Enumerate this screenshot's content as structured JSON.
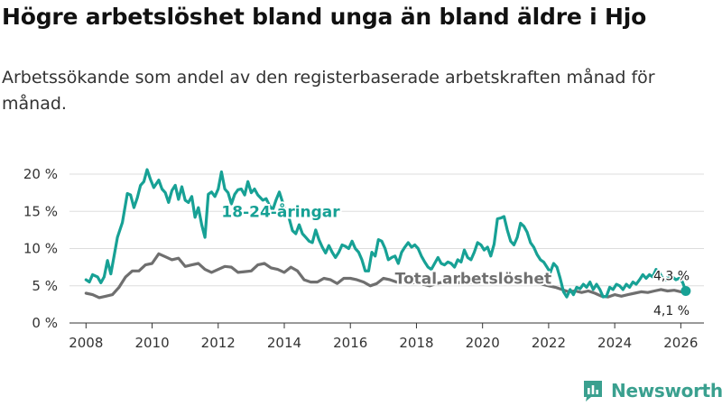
{
  "title": "Högre arbetslöshet bland unga än bland äldre i Hjo",
  "subtitle": "Arbetssökande som andel av den registerbaserade arbetskraften månad för månad.",
  "brand": {
    "name": "Newsworthy",
    "color": "#3aa08f",
    "logo_icon": "bar-chart-icon"
  },
  "chart_data": {
    "type": "line",
    "xlim": [
      2007.5,
      2026.7
    ],
    "ylim": [
      0,
      20
    ],
    "x_ticks": [
      {
        "value": 2008,
        "label": "2008"
      },
      {
        "value": 2010,
        "label": "2010"
      },
      {
        "value": 2012,
        "label": "2012"
      },
      {
        "value": 2014,
        "label": "2014"
      },
      {
        "value": 2016,
        "label": "2016"
      },
      {
        "value": 2018,
        "label": "2018"
      },
      {
        "value": 2020,
        "label": "2020"
      },
      {
        "value": 2022,
        "label": "2022"
      },
      {
        "value": 2024,
        "label": "2024"
      },
      {
        "value": 2026,
        "label": "2026"
      }
    ],
    "y_ticks": [
      {
        "value": 0,
        "label": "0 %"
      },
      {
        "value": 5,
        "label": "5 %"
      },
      {
        "value": 10,
        "label": "10 %"
      },
      {
        "value": 15,
        "label": "15 %"
      },
      {
        "value": 20,
        "label": "20 %"
      }
    ],
    "series": [
      {
        "name": "18-24-åringar",
        "color": "#17a195",
        "label_at": {
          "x": 2012.1,
          "y": 15.0
        },
        "end_label": "4,3 %",
        "points": [
          [
            2008.0,
            5.8
          ],
          [
            2008.1,
            5.5
          ],
          [
            2008.2,
            6.5
          ],
          [
            2008.35,
            6.2
          ],
          [
            2008.45,
            5.4
          ],
          [
            2008.55,
            6.2
          ],
          [
            2008.65,
            8.4
          ],
          [
            2008.75,
            6.6
          ],
          [
            2008.85,
            9.0
          ],
          [
            2008.95,
            11.5
          ],
          [
            2009.1,
            13.5
          ],
          [
            2009.25,
            17.4
          ],
          [
            2009.35,
            17.2
          ],
          [
            2009.45,
            15.5
          ],
          [
            2009.55,
            16.8
          ],
          [
            2009.65,
            18.5
          ],
          [
            2009.75,
            19.0
          ],
          [
            2009.85,
            20.6
          ],
          [
            2009.95,
            19.3
          ],
          [
            2010.05,
            18.2
          ],
          [
            2010.2,
            19.2
          ],
          [
            2010.3,
            18.0
          ],
          [
            2010.4,
            17.5
          ],
          [
            2010.5,
            16.2
          ],
          [
            2010.6,
            17.8
          ],
          [
            2010.7,
            18.5
          ],
          [
            2010.8,
            16.6
          ],
          [
            2010.9,
            18.3
          ],
          [
            2011.0,
            16.5
          ],
          [
            2011.1,
            16.2
          ],
          [
            2011.2,
            17.0
          ],
          [
            2011.3,
            14.2
          ],
          [
            2011.4,
            15.5
          ],
          [
            2011.5,
            13.2
          ],
          [
            2011.6,
            11.5
          ],
          [
            2011.7,
            17.3
          ],
          [
            2011.8,
            17.6
          ],
          [
            2011.9,
            17.0
          ],
          [
            2012.0,
            18.0
          ],
          [
            2012.1,
            20.3
          ],
          [
            2012.2,
            18.0
          ],
          [
            2012.3,
            17.5
          ],
          [
            2012.4,
            16.0
          ],
          [
            2012.5,
            17.3
          ],
          [
            2012.6,
            17.9
          ],
          [
            2012.7,
            18.0
          ],
          [
            2012.8,
            17.2
          ],
          [
            2012.9,
            19.0
          ],
          [
            2013.0,
            17.5
          ],
          [
            2013.1,
            18.0
          ],
          [
            2013.2,
            17.2
          ],
          [
            2013.35,
            16.5
          ],
          [
            2013.45,
            16.7
          ],
          [
            2013.55,
            15.8
          ],
          [
            2013.65,
            15.2
          ],
          [
            2013.75,
            16.5
          ],
          [
            2013.85,
            17.6
          ],
          [
            2013.95,
            16.2
          ],
          [
            2014.05,
            15.0
          ],
          [
            2014.15,
            14.0
          ],
          [
            2014.25,
            12.4
          ],
          [
            2014.35,
            12.0
          ],
          [
            2014.45,
            13.2
          ],
          [
            2014.55,
            12.0
          ],
          [
            2014.65,
            11.5
          ],
          [
            2014.75,
            11.0
          ],
          [
            2014.85,
            10.8
          ],
          [
            2014.95,
            12.5
          ],
          [
            2015.05,
            11.2
          ],
          [
            2015.15,
            10.2
          ],
          [
            2015.25,
            9.4
          ],
          [
            2015.35,
            10.4
          ],
          [
            2015.45,
            9.5
          ],
          [
            2015.55,
            8.8
          ],
          [
            2015.65,
            9.5
          ],
          [
            2015.75,
            10.5
          ],
          [
            2015.85,
            10.3
          ],
          [
            2015.95,
            10.0
          ],
          [
            2016.05,
            11.0
          ],
          [
            2016.15,
            10.0
          ],
          [
            2016.25,
            9.5
          ],
          [
            2016.35,
            8.5
          ],
          [
            2016.45,
            7.0
          ],
          [
            2016.55,
            7.0
          ],
          [
            2016.65,
            9.5
          ],
          [
            2016.75,
            9.0
          ],
          [
            2016.85,
            11.2
          ],
          [
            2016.95,
            11.0
          ],
          [
            2017.05,
            10.0
          ],
          [
            2017.15,
            8.5
          ],
          [
            2017.25,
            8.8
          ],
          [
            2017.35,
            9.0
          ],
          [
            2017.45,
            8.0
          ],
          [
            2017.55,
            9.5
          ],
          [
            2017.65,
            10.2
          ],
          [
            2017.75,
            10.8
          ],
          [
            2017.85,
            10.2
          ],
          [
            2017.95,
            10.5
          ],
          [
            2018.05,
            10.0
          ],
          [
            2018.15,
            9.0
          ],
          [
            2018.25,
            8.2
          ],
          [
            2018.35,
            7.5
          ],
          [
            2018.45,
            7.2
          ],
          [
            2018.55,
            8.0
          ],
          [
            2018.65,
            8.8
          ],
          [
            2018.75,
            8.0
          ],
          [
            2018.85,
            7.8
          ],
          [
            2018.95,
            8.2
          ],
          [
            2019.05,
            8.0
          ],
          [
            2019.15,
            7.5
          ],
          [
            2019.25,
            8.5
          ],
          [
            2019.35,
            8.2
          ],
          [
            2019.45,
            9.8
          ],
          [
            2019.55,
            8.8
          ],
          [
            2019.65,
            8.5
          ],
          [
            2019.75,
            9.5
          ],
          [
            2019.85,
            10.8
          ],
          [
            2019.95,
            10.5
          ],
          [
            2020.05,
            9.8
          ],
          [
            2020.15,
            10.2
          ],
          [
            2020.25,
            9.0
          ],
          [
            2020.35,
            10.6
          ],
          [
            2020.45,
            14.0
          ],
          [
            2020.55,
            14.1
          ],
          [
            2020.65,
            14.3
          ],
          [
            2020.75,
            12.5
          ],
          [
            2020.85,
            11.0
          ],
          [
            2020.95,
            10.5
          ],
          [
            2021.05,
            11.5
          ],
          [
            2021.15,
            13.4
          ],
          [
            2021.25,
            13.0
          ],
          [
            2021.35,
            12.2
          ],
          [
            2021.45,
            10.8
          ],
          [
            2021.55,
            10.2
          ],
          [
            2021.65,
            9.2
          ],
          [
            2021.75,
            8.5
          ],
          [
            2021.85,
            8.2
          ],
          [
            2021.95,
            7.5
          ],
          [
            2022.05,
            6.8
          ],
          [
            2022.15,
            8.0
          ],
          [
            2022.25,
            7.5
          ],
          [
            2022.35,
            6.0
          ],
          [
            2022.45,
            4.2
          ],
          [
            2022.55,
            3.5
          ],
          [
            2022.65,
            4.5
          ],
          [
            2022.75,
            3.8
          ],
          [
            2022.85,
            4.8
          ],
          [
            2022.95,
            4.6
          ],
          [
            2023.05,
            5.2
          ],
          [
            2023.15,
            4.8
          ],
          [
            2023.25,
            5.5
          ],
          [
            2023.35,
            4.5
          ],
          [
            2023.45,
            5.2
          ],
          [
            2023.55,
            4.5
          ],
          [
            2023.65,
            3.5
          ],
          [
            2023.75,
            3.6
          ],
          [
            2023.85,
            4.8
          ],
          [
            2023.95,
            4.5
          ],
          [
            2024.05,
            5.2
          ],
          [
            2024.15,
            5.0
          ],
          [
            2024.25,
            4.5
          ],
          [
            2024.35,
            5.2
          ],
          [
            2024.45,
            4.8
          ],
          [
            2024.55,
            5.5
          ],
          [
            2024.65,
            5.2
          ],
          [
            2024.75,
            5.8
          ],
          [
            2024.85,
            6.5
          ],
          [
            2024.95,
            6.0
          ],
          [
            2025.05,
            6.5
          ],
          [
            2025.15,
            6.2
          ],
          [
            2025.25,
            7.2
          ],
          [
            2025.35,
            6.8
          ],
          [
            2025.45,
            6.0
          ],
          [
            2025.55,
            5.8
          ],
          [
            2025.65,
            6.5
          ],
          [
            2025.75,
            6.2
          ],
          [
            2025.85,
            5.8
          ],
          [
            2025.95,
            6.0
          ],
          [
            2026.05,
            5.5
          ],
          [
            2026.15,
            4.3
          ]
        ]
      },
      {
        "name": "Total arbetslöshet",
        "color": "#6f6f6f",
        "label_at": {
          "x": 2017.35,
          "y": 6.0
        },
        "end_label": "4,1 %",
        "points": [
          [
            2008.0,
            4.0
          ],
          [
            2008.2,
            3.8
          ],
          [
            2008.4,
            3.4
          ],
          [
            2008.6,
            3.6
          ],
          [
            2008.8,
            3.8
          ],
          [
            2009.0,
            4.8
          ],
          [
            2009.2,
            6.2
          ],
          [
            2009.4,
            7.0
          ],
          [
            2009.6,
            7.0
          ],
          [
            2009.8,
            7.8
          ],
          [
            2010.0,
            8.0
          ],
          [
            2010.2,
            9.3
          ],
          [
            2010.4,
            8.9
          ],
          [
            2010.6,
            8.5
          ],
          [
            2010.8,
            8.7
          ],
          [
            2011.0,
            7.6
          ],
          [
            2011.2,
            7.8
          ],
          [
            2011.4,
            8.0
          ],
          [
            2011.6,
            7.2
          ],
          [
            2011.8,
            6.8
          ],
          [
            2012.0,
            7.2
          ],
          [
            2012.2,
            7.6
          ],
          [
            2012.4,
            7.5
          ],
          [
            2012.6,
            6.8
          ],
          [
            2012.8,
            6.9
          ],
          [
            2013.0,
            7.0
          ],
          [
            2013.2,
            7.8
          ],
          [
            2013.4,
            8.0
          ],
          [
            2013.6,
            7.4
          ],
          [
            2013.8,
            7.2
          ],
          [
            2014.0,
            6.8
          ],
          [
            2014.2,
            7.5
          ],
          [
            2014.4,
            7.0
          ],
          [
            2014.6,
            5.8
          ],
          [
            2014.8,
            5.5
          ],
          [
            2015.0,
            5.5
          ],
          [
            2015.2,
            6.0
          ],
          [
            2015.4,
            5.8
          ],
          [
            2015.6,
            5.3
          ],
          [
            2015.8,
            6.0
          ],
          [
            2016.0,
            6.0
          ],
          [
            2016.2,
            5.8
          ],
          [
            2016.4,
            5.5
          ],
          [
            2016.6,
            5.0
          ],
          [
            2016.8,
            5.3
          ],
          [
            2017.0,
            6.0
          ],
          [
            2017.2,
            5.8
          ],
          [
            2017.4,
            5.5
          ],
          [
            2017.6,
            5.5
          ],
          [
            2017.8,
            5.3
          ],
          [
            2018.0,
            5.5
          ],
          [
            2018.2,
            5.2
          ],
          [
            2018.4,
            5.0
          ],
          [
            2018.6,
            5.3
          ],
          [
            2018.8,
            5.5
          ],
          [
            2019.0,
            5.4
          ],
          [
            2019.2,
            5.3
          ],
          [
            2019.4,
            5.6
          ],
          [
            2019.6,
            5.4
          ],
          [
            2019.8,
            5.6
          ],
          [
            2020.0,
            5.8
          ],
          [
            2020.2,
            5.6
          ],
          [
            2020.4,
            6.0
          ],
          [
            2020.6,
            6.2
          ],
          [
            2020.8,
            5.8
          ],
          [
            2021.0,
            5.8
          ],
          [
            2021.2,
            6.0
          ],
          [
            2021.4,
            5.6
          ],
          [
            2021.6,
            5.4
          ],
          [
            2021.8,
            5.2
          ],
          [
            2022.0,
            5.0
          ],
          [
            2022.2,
            4.8
          ],
          [
            2022.4,
            4.5
          ],
          [
            2022.6,
            4.2
          ],
          [
            2022.8,
            4.3
          ],
          [
            2023.0,
            4.1
          ],
          [
            2023.2,
            4.3
          ],
          [
            2023.4,
            4.0
          ],
          [
            2023.6,
            3.6
          ],
          [
            2023.8,
            3.5
          ],
          [
            2024.0,
            3.8
          ],
          [
            2024.2,
            3.6
          ],
          [
            2024.4,
            3.8
          ],
          [
            2024.6,
            4.0
          ],
          [
            2024.8,
            4.2
          ],
          [
            2025.0,
            4.1
          ],
          [
            2025.2,
            4.3
          ],
          [
            2025.4,
            4.5
          ],
          [
            2025.6,
            4.3
          ],
          [
            2025.8,
            4.4
          ],
          [
            2026.0,
            4.2
          ],
          [
            2026.15,
            4.1
          ]
        ]
      }
    ]
  }
}
